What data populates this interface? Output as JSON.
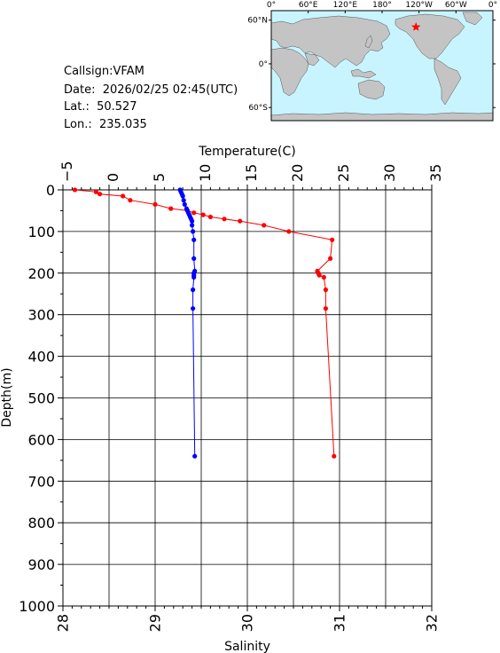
{
  "station": {
    "callsign_label": "Callsign:",
    "callsign": "VFAM",
    "date_label": "Date:",
    "date": "2026/02/25 02:45(UTC)",
    "lat_label": "Lat.:",
    "lat": "50.527",
    "lon_label": "Lon.:",
    "lon": "235.035"
  },
  "map": {
    "lon_ticks": [
      "0°",
      "60°E",
      "120°E",
      "180°",
      "120°W",
      "60°W",
      "0°"
    ],
    "lat_ticks": [
      "60°N",
      "0°",
      "60°S"
    ],
    "ocean_color": "#c8f4ff",
    "land_color": "#c4c4c4",
    "marker_color": "#ff0000",
    "marker": {
      "lon": 235.035,
      "lat": 50.527
    }
  },
  "chart_data": {
    "type": "line",
    "ylabel": "Depth(m)",
    "ylim": [
      1000,
      0
    ],
    "yticks": [
      "0",
      "100",
      "200",
      "300",
      "400",
      "500",
      "600",
      "700",
      "800",
      "900",
      "1000"
    ],
    "grid": true,
    "top_axis": {
      "label": "Temperature(C)",
      "xlim": [
        -5,
        35
      ],
      "ticks": [
        "−5",
        "0",
        "5",
        "10",
        "15",
        "20",
        "25",
        "30",
        "35"
      ]
    },
    "bottom_axis": {
      "label": "Salinity",
      "xlim": [
        28,
        32
      ],
      "ticks": [
        "28",
        "29",
        "30",
        "31",
        "32"
      ]
    },
    "series": [
      {
        "axis": "top",
        "color": "#ff0000",
        "x": [
          -3.7,
          -1.4,
          -1.0,
          1.5,
          2.3,
          5.0,
          6.7,
          8.5,
          9.2,
          10.2,
          11.0,
          12.5,
          14.2,
          16.8,
          19.5,
          24.2,
          24.0,
          22.6,
          22.7,
          22.8,
          23.3,
          23.5,
          23.5,
          24.4
        ],
        "y": [
          0,
          5,
          10,
          15,
          25,
          35,
          45,
          50,
          55,
          60,
          65,
          70,
          75,
          85,
          100,
          120,
          165,
          195,
          200,
          205,
          210,
          240,
          285,
          640
        ]
      },
      {
        "axis": "bottom",
        "color": "#0000ff",
        "x": [
          29.27,
          29.28,
          29.29,
          29.3,
          29.31,
          29.32,
          29.34,
          29.35,
          29.36,
          29.37,
          29.38,
          29.39,
          29.4,
          29.4,
          29.41,
          29.42,
          29.42,
          29.43,
          29.42,
          29.42,
          29.42,
          29.41,
          29.41,
          29.43
        ],
        "y": [
          0,
          5,
          10,
          15,
          25,
          35,
          45,
          50,
          55,
          60,
          65,
          70,
          75,
          85,
          100,
          120,
          165,
          195,
          200,
          205,
          210,
          240,
          285,
          640
        ]
      }
    ]
  }
}
